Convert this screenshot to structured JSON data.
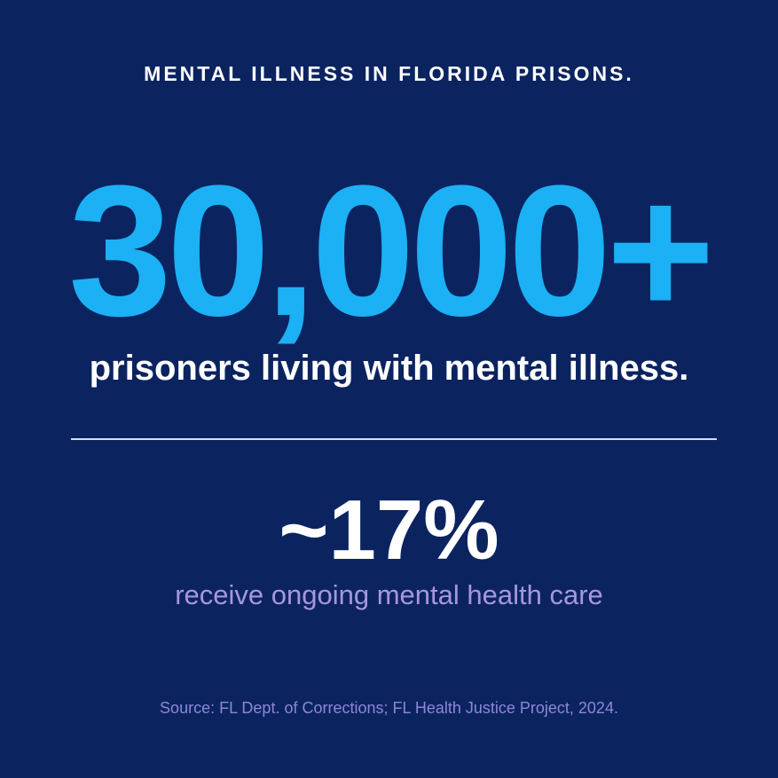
{
  "title": "MENTAL ILLNESS IN FLORIDA PRISONS.",
  "stat1": {
    "value": "30,000+",
    "label": "prisoners living with mental illness."
  },
  "stat2": {
    "value": "~17%",
    "label": "receive ongoing mental health care"
  },
  "source": "Source: FL Dept. of Corrections; FL Health Justice Project, 2024."
}
